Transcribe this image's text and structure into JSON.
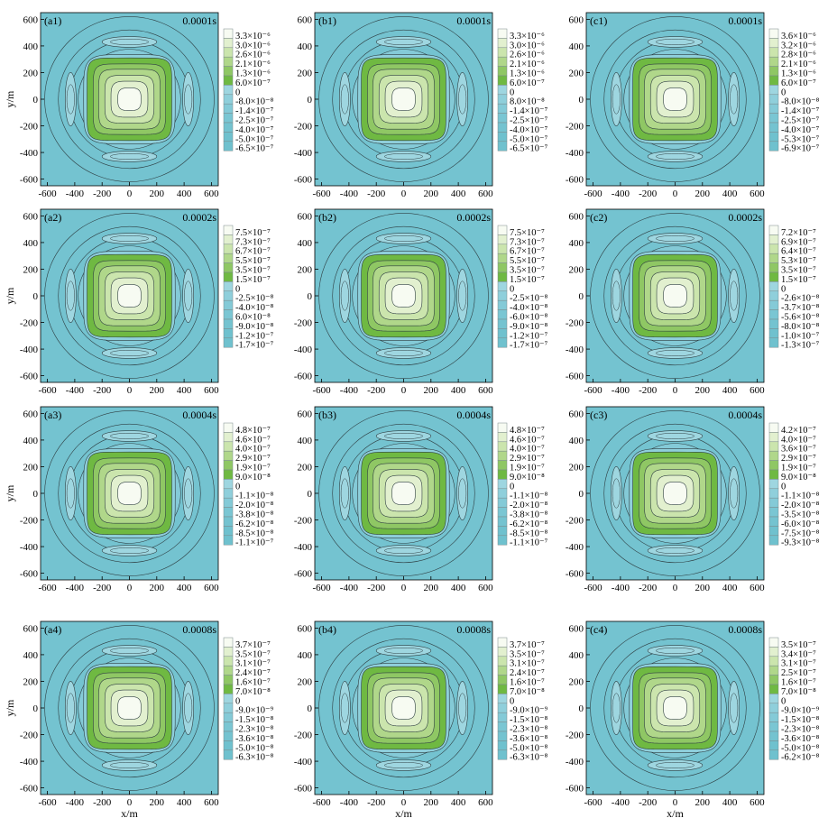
{
  "chart_data": {
    "type": "heatmap",
    "xlabel": "x/m",
    "ylabel": "y/m",
    "xlim": [
      -650,
      650
    ],
    "ylim": [
      -650,
      650
    ],
    "ticks": [
      "-600",
      "-400",
      "-200",
      "0",
      "200",
      "400",
      "600"
    ],
    "tick_values": [
      -600,
      -400,
      -200,
      0,
      200,
      400,
      600
    ],
    "colors": {
      "positive": [
        "#f7fbf2",
        "#e2f0cf",
        "#cbe5ad",
        "#b0d78a",
        "#8fc764",
        "#6fb942"
      ],
      "negative": [
        "#9ed6e0",
        "#8fcfdb",
        "#84cad7",
        "#7ac6d3",
        "#74c3d0",
        "#6fc1ce"
      ],
      "outline": "#2f3f43"
    },
    "panels": [
      {
        "id": "(a1)",
        "time": "0.0001s",
        "legend": [
          "3.3×10⁻⁶",
          "3.0×10⁻⁶",
          "2.6×10⁻⁶",
          "2.1×10⁻⁶",
          "1.3×10⁻⁶",
          "6.0×10⁻⁷",
          "0",
          "-8.0×10⁻⁸",
          "-1.4×10⁻⁷",
          "-2.5×10⁻⁷",
          "-4.0×10⁻⁷",
          "-5.0×10⁻⁷",
          "-6.5×10⁻⁷"
        ]
      },
      {
        "id": "(b1)",
        "time": "0.0001s",
        "legend": [
          "3.3×10⁻⁶",
          "3.0×10⁻⁶",
          "2.6×10⁻⁶",
          "2.1×10⁻⁶",
          "1.3×10⁻⁶",
          "6.0×10⁻⁷",
          "0",
          "8.0×10⁻⁸",
          "-1.4×10⁻⁷",
          "-2.5×10⁻⁷",
          "-4.0×10⁻⁷",
          "-5.0×10⁻⁷",
          "-6.5×10⁻⁷"
        ]
      },
      {
        "id": "(c1)",
        "time": "0.0001s",
        "legend": [
          "3.6×10⁻⁶",
          "3.2×10⁻⁶",
          "2.8×10⁻⁶",
          "2.1×10⁻⁶",
          "1.3×10⁻⁶",
          "6.0×10⁻⁷",
          "0",
          "-8.0×10⁻⁸",
          "-1.4×10⁻⁷",
          "-2.5×10⁻⁷",
          "-4.0×10⁻⁷",
          "-5.3×10⁻⁷",
          "-6.9×10⁻⁷"
        ]
      },
      {
        "id": "(a2)",
        "time": "0.0002s",
        "legend": [
          "7.5×10⁻⁷",
          "7.3×10⁻⁷",
          "6.7×10⁻⁷",
          "5.5×10⁻⁷",
          "3.5×10⁻⁷",
          "1.5×10⁻⁷",
          "0",
          "-2.5×10⁻⁸",
          "-4.0×10⁻⁸",
          "6.0×10⁻⁸",
          "-9.0×10⁻⁸",
          "-1.2×10⁻⁷",
          "-1.7×10⁻⁷"
        ]
      },
      {
        "id": "(b2)",
        "time": "0.0002s",
        "legend": [
          "7.5×10⁻⁷",
          "7.3×10⁻⁷",
          "6.7×10⁻⁷",
          "5.5×10⁻⁷",
          "3.5×10⁻⁷",
          "1.5×10⁻⁷",
          "0",
          "-2.5×10⁻⁸",
          "-4.0×10⁻⁸",
          "-6.0×10⁻⁸",
          "-9.0×10⁻⁸",
          "-1.2×10⁻⁷",
          "-1.7×10⁻⁷"
        ]
      },
      {
        "id": "(c2)",
        "time": "0.0002s",
        "legend": [
          "7.2×10⁻⁷",
          "6.9×10⁻⁷",
          "6.4×10⁻⁷",
          "5.3×10⁻⁷",
          "3.5×10⁻⁷",
          "1.5×10⁻⁷",
          "0",
          "-2.6×10⁻⁸",
          "-3.7×10⁻⁸",
          "-5.6×10⁻⁸",
          "-8.0×10⁻⁸",
          "-1.0×10⁻⁷",
          "-1.3×10⁻⁷"
        ]
      },
      {
        "id": "(a3)",
        "time": "0.0004s",
        "legend": [
          "4.8×10⁻⁷",
          "4.6×10⁻⁷",
          "4.0×10⁻⁷",
          "2.9×10⁻⁷",
          "1.9×10⁻⁷",
          "9.0×10⁻⁸",
          "0",
          "-1.1×10⁻⁸",
          "-2.0×10⁻⁸",
          "-3.8×10⁻⁸",
          "-6.2×10⁻⁸",
          "-8.5×10⁻⁸",
          "-1.1×10⁻⁷"
        ]
      },
      {
        "id": "(b3)",
        "time": "0.0004s",
        "legend": [
          "4.8×10⁻⁷",
          "4.6×10⁻⁷",
          "4.0×10⁻⁷",
          "2.9×10⁻⁷",
          "1.9×10⁻⁷",
          "9.0×10⁻⁸",
          "0",
          "-1.1×10⁻⁸",
          "-2.0×10⁻⁸",
          "-3.8×10⁻⁸",
          "-6.2×10⁻⁸",
          "-8.5×10⁻⁸",
          "-1.1×10⁻⁷"
        ]
      },
      {
        "id": "(c3)",
        "time": "0.0004s",
        "legend": [
          "4.2×10⁻⁷",
          "4.0×10⁻⁷",
          "3.6×10⁻⁷",
          "2.9×10⁻⁷",
          "1.9×10⁻⁷",
          "9.0×10⁻⁸",
          "0",
          "-1.1×10⁻⁸",
          "-2.0×10⁻⁸",
          "-3.5×10⁻⁸",
          "-6.0×10⁻⁸",
          "-7.5×10⁻⁸",
          "-9.3×10⁻⁸"
        ]
      },
      {
        "id": "(a4)",
        "time": "0.0008s",
        "legend": [
          "3.7×10⁻⁷",
          "3.5×10⁻⁷",
          "3.1×10⁻⁷",
          "2.4×10⁻⁷",
          "1.6×10⁻⁷",
          "7.0×10⁻⁸",
          "0",
          "-9.0×10⁻⁹",
          "-1.5×10⁻⁸",
          "-2.3×10⁻⁸",
          "-3.6×10⁻⁸",
          "-5.0×10⁻⁸",
          "-6.3×10⁻⁸"
        ]
      },
      {
        "id": "(b4)",
        "time": "0.0008s",
        "legend": [
          "3.7×10⁻⁷",
          "3.5×10⁻⁷",
          "3.1×10⁻⁷",
          "2.4×10⁻⁷",
          "1.6×10⁻⁷",
          "7.0×10⁻⁸",
          "0",
          "-9.0×10⁻⁹",
          "-1.5×10⁻⁸",
          "-2.3×10⁻⁸",
          "-3.6×10⁻⁸",
          "-5.0×10⁻⁸",
          "-6.3×10⁻⁸"
        ]
      },
      {
        "id": "(c4)",
        "time": "0.0008s",
        "legend": [
          "3.5×10⁻⁷",
          "3.4×10⁻⁷",
          "3.1×10⁻⁷",
          "2.5×10⁻⁷",
          "1.6×10⁻⁷",
          "7.0×10⁻⁸",
          "0",
          "-9.0×10⁻⁹",
          "-1.5×10⁻⁸",
          "-2.3×10⁻⁸",
          "-3.6×10⁻⁸",
          "-5.0×10⁻⁸",
          "-6.2×10⁻⁸"
        ]
      }
    ]
  }
}
